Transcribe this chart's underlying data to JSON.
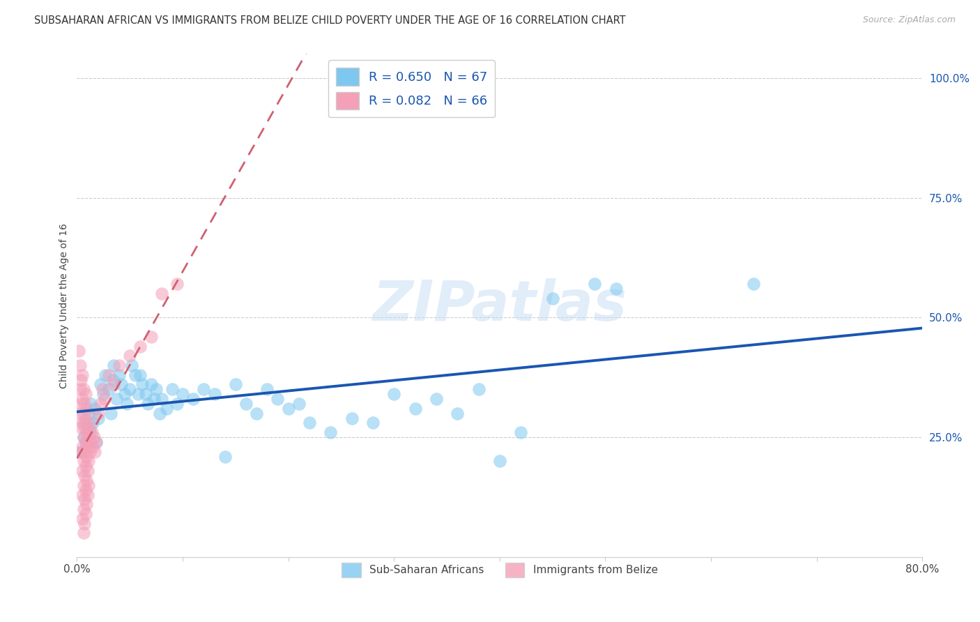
{
  "title": "SUBSAHARAN AFRICAN VS IMMIGRANTS FROM BELIZE CHILD POVERTY UNDER THE AGE OF 16 CORRELATION CHART",
  "source": "Source: ZipAtlas.com",
  "ylabel": "Child Poverty Under the Age of 16",
  "xlim": [
    0,
    0.8
  ],
  "ylim": [
    0,
    1.05
  ],
  "legend_r1": "R = 0.650",
  "legend_n1": "N = 67",
  "legend_r2": "R = 0.082",
  "legend_n2": "N = 66",
  "blue_color": "#7EC8F0",
  "pink_color": "#F4A0B8",
  "blue_line_color": "#1a56b0",
  "pink_line_color": "#d06070",
  "watermark": "ZIPatlas",
  "blue_scatter": [
    [
      0.004,
      0.22
    ],
    [
      0.006,
      0.25
    ],
    [
      0.007,
      0.28
    ],
    [
      0.008,
      0.24
    ],
    [
      0.01,
      0.27
    ],
    [
      0.011,
      0.3
    ],
    [
      0.012,
      0.26
    ],
    [
      0.013,
      0.32
    ],
    [
      0.015,
      0.28
    ],
    [
      0.017,
      0.31
    ],
    [
      0.018,
      0.24
    ],
    [
      0.02,
      0.29
    ],
    [
      0.022,
      0.36
    ],
    [
      0.025,
      0.34
    ],
    [
      0.027,
      0.38
    ],
    [
      0.03,
      0.35
    ],
    [
      0.032,
      0.3
    ],
    [
      0.034,
      0.37
    ],
    [
      0.035,
      0.4
    ],
    [
      0.037,
      0.33
    ],
    [
      0.04,
      0.38
    ],
    [
      0.042,
      0.36
    ],
    [
      0.045,
      0.34
    ],
    [
      0.047,
      0.32
    ],
    [
      0.05,
      0.35
    ],
    [
      0.052,
      0.4
    ],
    [
      0.055,
      0.38
    ],
    [
      0.058,
      0.34
    ],
    [
      0.06,
      0.38
    ],
    [
      0.062,
      0.36
    ],
    [
      0.065,
      0.34
    ],
    [
      0.067,
      0.32
    ],
    [
      0.07,
      0.36
    ],
    [
      0.073,
      0.33
    ],
    [
      0.075,
      0.35
    ],
    [
      0.078,
      0.3
    ],
    [
      0.08,
      0.33
    ],
    [
      0.085,
      0.31
    ],
    [
      0.09,
      0.35
    ],
    [
      0.095,
      0.32
    ],
    [
      0.1,
      0.34
    ],
    [
      0.11,
      0.33
    ],
    [
      0.12,
      0.35
    ],
    [
      0.13,
      0.34
    ],
    [
      0.14,
      0.21
    ],
    [
      0.15,
      0.36
    ],
    [
      0.16,
      0.32
    ],
    [
      0.17,
      0.3
    ],
    [
      0.18,
      0.35
    ],
    [
      0.19,
      0.33
    ],
    [
      0.2,
      0.31
    ],
    [
      0.21,
      0.32
    ],
    [
      0.22,
      0.28
    ],
    [
      0.24,
      0.26
    ],
    [
      0.26,
      0.29
    ],
    [
      0.28,
      0.28
    ],
    [
      0.3,
      0.34
    ],
    [
      0.32,
      0.31
    ],
    [
      0.34,
      0.33
    ],
    [
      0.36,
      0.3
    ],
    [
      0.38,
      0.35
    ],
    [
      0.4,
      0.2
    ],
    [
      0.42,
      0.26
    ],
    [
      0.45,
      0.54
    ],
    [
      0.49,
      0.57
    ],
    [
      0.51,
      0.56
    ],
    [
      0.64,
      0.57
    ]
  ],
  "pink_scatter": [
    [
      0.002,
      0.43
    ],
    [
      0.003,
      0.4
    ],
    [
      0.003,
      0.35
    ],
    [
      0.003,
      0.3
    ],
    [
      0.004,
      0.37
    ],
    [
      0.004,
      0.32
    ],
    [
      0.004,
      0.27
    ],
    [
      0.004,
      0.22
    ],
    [
      0.005,
      0.38
    ],
    [
      0.005,
      0.33
    ],
    [
      0.005,
      0.28
    ],
    [
      0.005,
      0.23
    ],
    [
      0.005,
      0.18
    ],
    [
      0.005,
      0.13
    ],
    [
      0.005,
      0.08
    ],
    [
      0.006,
      0.35
    ],
    [
      0.006,
      0.3
    ],
    [
      0.006,
      0.25
    ],
    [
      0.006,
      0.2
    ],
    [
      0.006,
      0.15
    ],
    [
      0.006,
      0.1
    ],
    [
      0.006,
      0.05
    ],
    [
      0.007,
      0.32
    ],
    [
      0.007,
      0.27
    ],
    [
      0.007,
      0.22
    ],
    [
      0.007,
      0.17
    ],
    [
      0.007,
      0.12
    ],
    [
      0.007,
      0.07
    ],
    [
      0.008,
      0.34
    ],
    [
      0.008,
      0.29
    ],
    [
      0.008,
      0.24
    ],
    [
      0.008,
      0.19
    ],
    [
      0.008,
      0.14
    ],
    [
      0.008,
      0.09
    ],
    [
      0.009,
      0.31
    ],
    [
      0.009,
      0.26
    ],
    [
      0.009,
      0.21
    ],
    [
      0.009,
      0.16
    ],
    [
      0.009,
      0.11
    ],
    [
      0.01,
      0.28
    ],
    [
      0.01,
      0.23
    ],
    [
      0.01,
      0.18
    ],
    [
      0.01,
      0.13
    ],
    [
      0.011,
      0.25
    ],
    [
      0.011,
      0.2
    ],
    [
      0.011,
      0.15
    ],
    [
      0.012,
      0.27
    ],
    [
      0.012,
      0.22
    ],
    [
      0.013,
      0.24
    ],
    [
      0.014,
      0.26
    ],
    [
      0.015,
      0.23
    ],
    [
      0.016,
      0.25
    ],
    [
      0.017,
      0.22
    ],
    [
      0.018,
      0.24
    ],
    [
      0.02,
      0.3
    ],
    [
      0.022,
      0.32
    ],
    [
      0.024,
      0.35
    ],
    [
      0.026,
      0.33
    ],
    [
      0.03,
      0.38
    ],
    [
      0.035,
      0.36
    ],
    [
      0.04,
      0.4
    ],
    [
      0.05,
      0.42
    ],
    [
      0.06,
      0.44
    ],
    [
      0.07,
      0.46
    ],
    [
      0.08,
      0.55
    ],
    [
      0.095,
      0.57
    ]
  ]
}
